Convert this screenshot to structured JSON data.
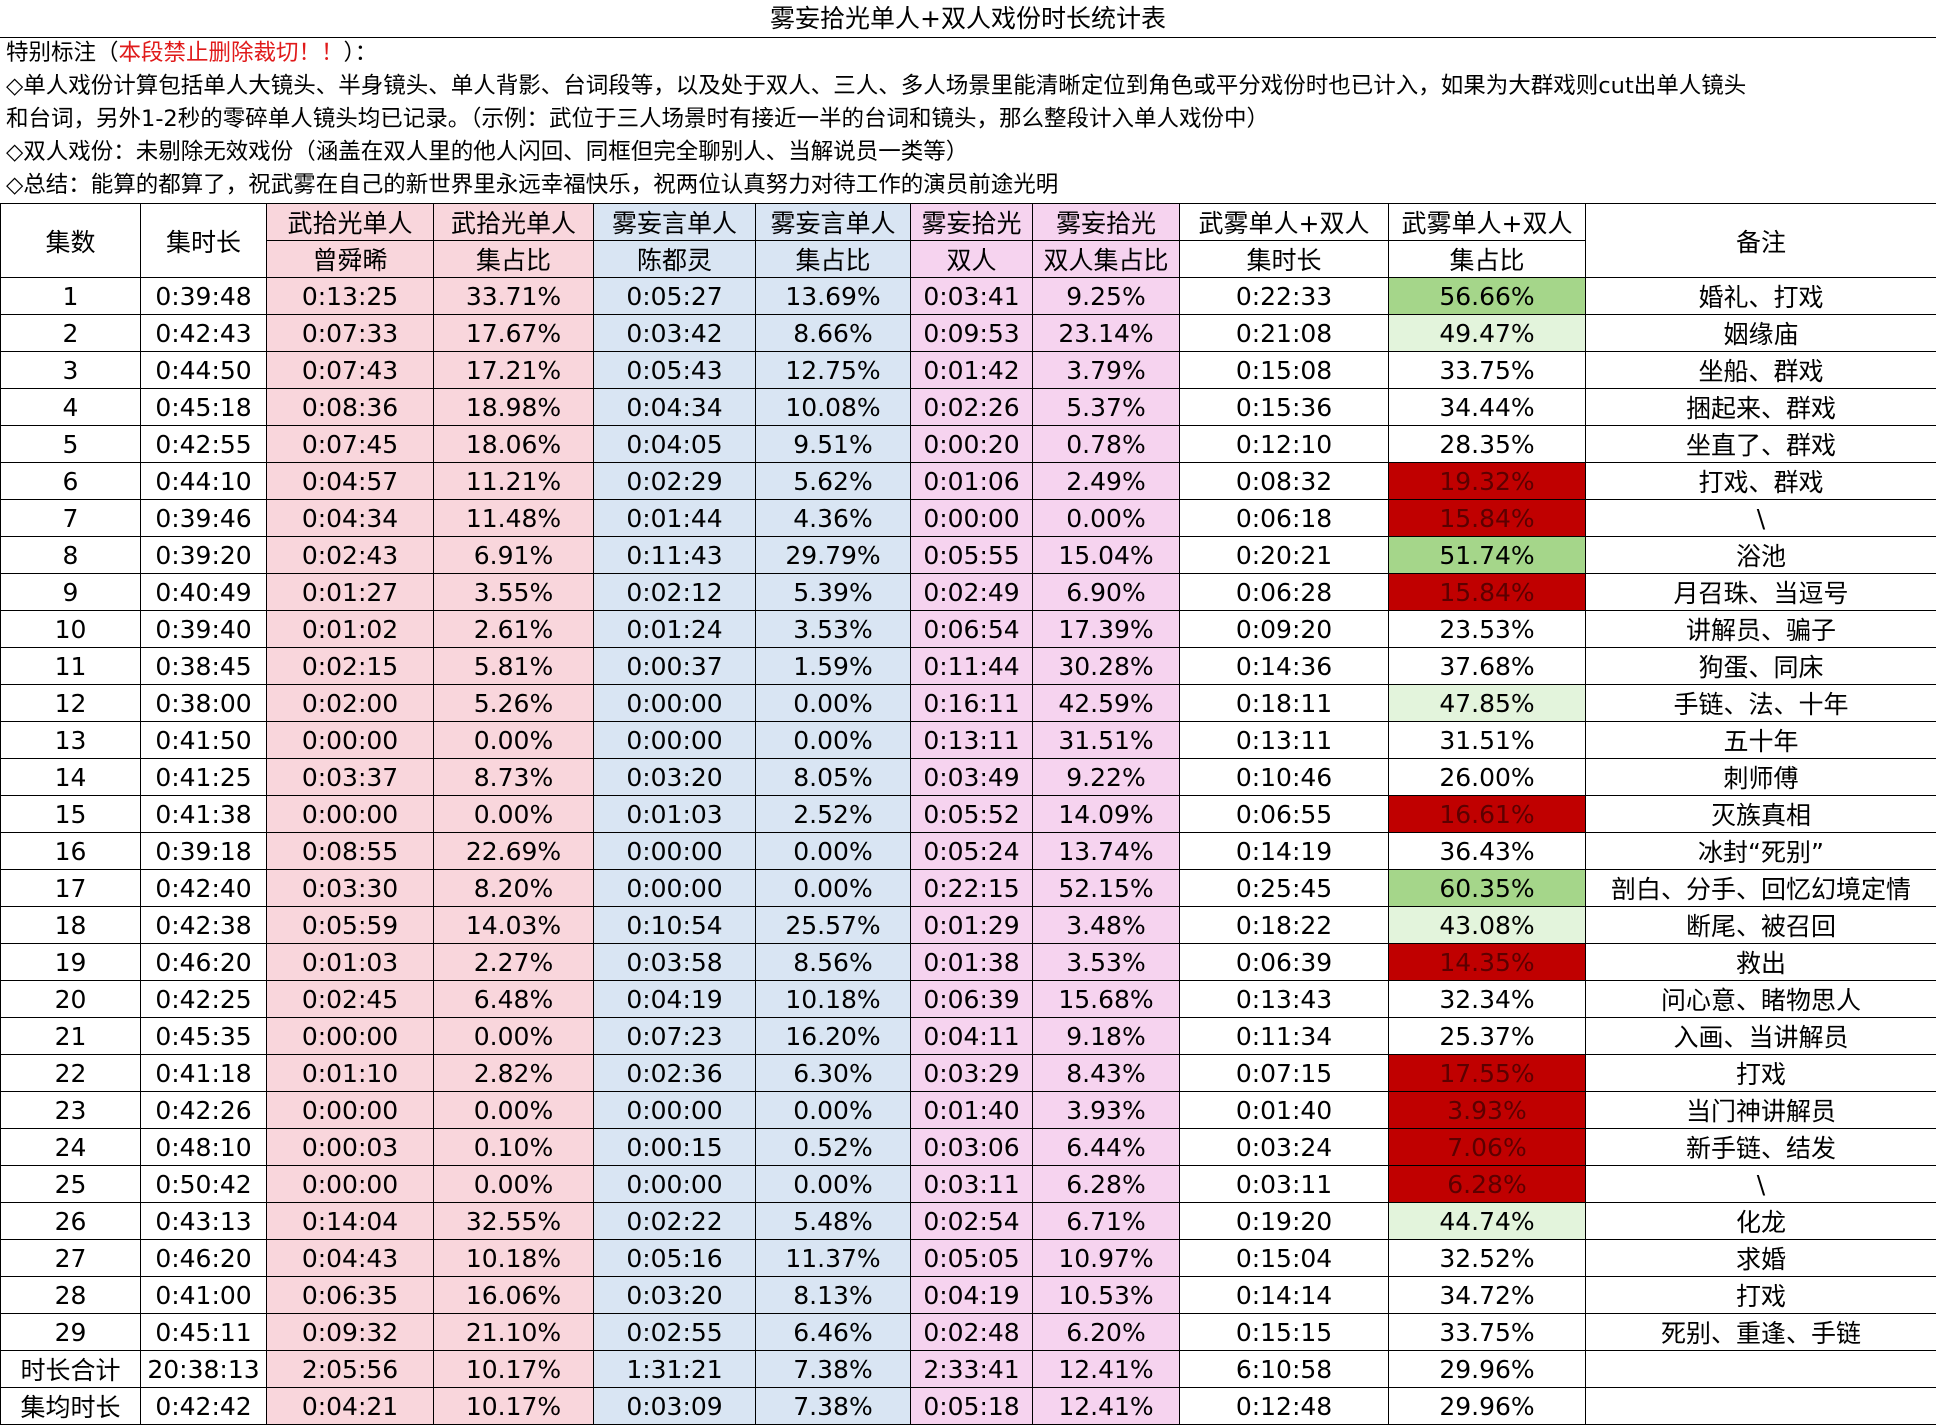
{
  "title": "雾妄拾光单人+双人戏份时长统计表",
  "notes": {
    "special_prefix": "特别标注（",
    "special_red": "本段禁止删除裁切！！",
    "special_suffix": "）：",
    "line1": "◇单人戏份计算包括单人大镜头、半身镜头、单人背影、台词段等，以及处于双人、三人、多人场景里能清晰定位到角色或平分戏份时也已计入，如果为大群戏则cut出单人镜头",
    "line2": "和台词，另外1-2秒的零碎单人镜头均已记录。（示例：武位于三人场景时有接近一半的台词和镜头，那么整段计入单人戏份中）",
    "line3": "◇双人戏份：未剔除无效戏份（涵盖在双人里的他人闪回、同框但完全聊别人、当解说员一类等）",
    "line4": "◇总结：能算的都算了，祝武雾在自己的新世界里永远幸福快乐，祝两位认真努力对待工作的演员前途光明"
  },
  "header": {
    "episode": "集数",
    "duration": "集时长",
    "wu_solo_top": "武拾光单人",
    "wu_solo_actor": "曾舜晞",
    "wu_share_top": "武拾光单人",
    "wu_share_bottom": "集占比",
    "wuyan_solo_top": "雾妄言单人",
    "wuyan_solo_actor": "陈都灵",
    "wuyan_share_top": "雾妄言单人",
    "wuyan_share_bottom": "集占比",
    "duo_top": "雾妄拾光",
    "duo_bottom": "双人",
    "duo_share_top": "雾妄拾光",
    "duo_share_bottom": "双人集占比",
    "total_top": "武雾单人+双人",
    "total_bottom": "集时长",
    "total_share_top": "武雾单人+双人",
    "total_share_bottom": "集占比",
    "remark": "备注"
  },
  "colors": {
    "pink": "#f9d6dc",
    "blue": "#d9e5f3",
    "purple": "#f6d3ef",
    "green_strong": "#a5d68a",
    "green_light": "#e3f4dc",
    "red_strong": "#c00000"
  },
  "rows": [
    {
      "ep": "1",
      "dur": "0:39:48",
      "wu": "0:13:25",
      "wu_pct": "33.71%",
      "wy": "0:05:27",
      "wy_pct": "13.69%",
      "duo": "0:03:41",
      "duo_pct": "9.25%",
      "tot": "0:22:33",
      "tot_pct": "56.66%",
      "hl": "green-strong",
      "note": "婚礼、打戏"
    },
    {
      "ep": "2",
      "dur": "0:42:43",
      "wu": "0:07:33",
      "wu_pct": "17.67%",
      "wy": "0:03:42",
      "wy_pct": "8.66%",
      "duo": "0:09:53",
      "duo_pct": "23.14%",
      "tot": "0:21:08",
      "tot_pct": "49.47%",
      "hl": "green-light",
      "note": "姻缘庙"
    },
    {
      "ep": "3",
      "dur": "0:44:50",
      "wu": "0:07:43",
      "wu_pct": "17.21%",
      "wy": "0:05:43",
      "wy_pct": "12.75%",
      "duo": "0:01:42",
      "duo_pct": "3.79%",
      "tot": "0:15:08",
      "tot_pct": "33.75%",
      "hl": "",
      "note": "坐船、群戏"
    },
    {
      "ep": "4",
      "dur": "0:45:18",
      "wu": "0:08:36",
      "wu_pct": "18.98%",
      "wy": "0:04:34",
      "wy_pct": "10.08%",
      "duo": "0:02:26",
      "duo_pct": "5.37%",
      "tot": "0:15:36",
      "tot_pct": "34.44%",
      "hl": "",
      "note": "捆起来、群戏"
    },
    {
      "ep": "5",
      "dur": "0:42:55",
      "wu": "0:07:45",
      "wu_pct": "18.06%",
      "wy": "0:04:05",
      "wy_pct": "9.51%",
      "duo": "0:00:20",
      "duo_pct": "0.78%",
      "tot": "0:12:10",
      "tot_pct": "28.35%",
      "hl": "",
      "note": "坐直了、群戏"
    },
    {
      "ep": "6",
      "dur": "0:44:10",
      "wu": "0:04:57",
      "wu_pct": "11.21%",
      "wy": "0:02:29",
      "wy_pct": "5.62%",
      "duo": "0:01:06",
      "duo_pct": "2.49%",
      "tot": "0:08:32",
      "tot_pct": "19.32%",
      "hl": "red-strong",
      "note": "打戏、群戏"
    },
    {
      "ep": "7",
      "dur": "0:39:46",
      "wu": "0:04:34",
      "wu_pct": "11.48%",
      "wy": "0:01:44",
      "wy_pct": "4.36%",
      "duo": "0:00:00",
      "duo_pct": "0.00%",
      "tot": "0:06:18",
      "tot_pct": "15.84%",
      "hl": "red-strong",
      "note": "\\"
    },
    {
      "ep": "8",
      "dur": "0:39:20",
      "wu": "0:02:43",
      "wu_pct": "6.91%",
      "wy": "0:11:43",
      "wy_pct": "29.79%",
      "duo": "0:05:55",
      "duo_pct": "15.04%",
      "tot": "0:20:21",
      "tot_pct": "51.74%",
      "hl": "green-strong",
      "note": "浴池"
    },
    {
      "ep": "9",
      "dur": "0:40:49",
      "wu": "0:01:27",
      "wu_pct": "3.55%",
      "wy": "0:02:12",
      "wy_pct": "5.39%",
      "duo": "0:02:49",
      "duo_pct": "6.90%",
      "tot": "0:06:28",
      "tot_pct": "15.84%",
      "hl": "red-strong",
      "note": "月召珠、当逗号"
    },
    {
      "ep": "10",
      "dur": "0:39:40",
      "wu": "0:01:02",
      "wu_pct": "2.61%",
      "wy": "0:01:24",
      "wy_pct": "3.53%",
      "duo": "0:06:54",
      "duo_pct": "17.39%",
      "tot": "0:09:20",
      "tot_pct": "23.53%",
      "hl": "",
      "note": "讲解员、骗子"
    },
    {
      "ep": "11",
      "dur": "0:38:45",
      "wu": "0:02:15",
      "wu_pct": "5.81%",
      "wy": "0:00:37",
      "wy_pct": "1.59%",
      "duo": "0:11:44",
      "duo_pct": "30.28%",
      "tot": "0:14:36",
      "tot_pct": "37.68%",
      "hl": "",
      "note": "狗蛋、同床"
    },
    {
      "ep": "12",
      "dur": "0:38:00",
      "wu": "0:02:00",
      "wu_pct": "5.26%",
      "wy": "0:00:00",
      "wy_pct": "0.00%",
      "duo": "0:16:11",
      "duo_pct": "42.59%",
      "tot": "0:18:11",
      "tot_pct": "47.85%",
      "hl": "green-light",
      "note": "手链、法、十年"
    },
    {
      "ep": "13",
      "dur": "0:41:50",
      "wu": "0:00:00",
      "wu_pct": "0.00%",
      "wy": "0:00:00",
      "wy_pct": "0.00%",
      "duo": "0:13:11",
      "duo_pct": "31.51%",
      "tot": "0:13:11",
      "tot_pct": "31.51%",
      "hl": "",
      "note": "五十年"
    },
    {
      "ep": "14",
      "dur": "0:41:25",
      "wu": "0:03:37",
      "wu_pct": "8.73%",
      "wy": "0:03:20",
      "wy_pct": "8.05%",
      "duo": "0:03:49",
      "duo_pct": "9.22%",
      "tot": "0:10:46",
      "tot_pct": "26.00%",
      "hl": "",
      "note": "刺师傅"
    },
    {
      "ep": "15",
      "dur": "0:41:38",
      "wu": "0:00:00",
      "wu_pct": "0.00%",
      "wy": "0:01:03",
      "wy_pct": "2.52%",
      "duo": "0:05:52",
      "duo_pct": "14.09%",
      "tot": "0:06:55",
      "tot_pct": "16.61%",
      "hl": "red-strong",
      "note": "灭族真相"
    },
    {
      "ep": "16",
      "dur": "0:39:18",
      "wu": "0:08:55",
      "wu_pct": "22.69%",
      "wy": "0:00:00",
      "wy_pct": "0.00%",
      "duo": "0:05:24",
      "duo_pct": "13.74%",
      "tot": "0:14:19",
      "tot_pct": "36.43%",
      "hl": "",
      "note": "冰封“死别”"
    },
    {
      "ep": "17",
      "dur": "0:42:40",
      "wu": "0:03:30",
      "wu_pct": "8.20%",
      "wy": "0:00:00",
      "wy_pct": "0.00%",
      "duo": "0:22:15",
      "duo_pct": "52.15%",
      "tot": "0:25:45",
      "tot_pct": "60.35%",
      "hl": "green-strong",
      "note": "剖白、分手、回忆幻境定情"
    },
    {
      "ep": "18",
      "dur": "0:42:38",
      "wu": "0:05:59",
      "wu_pct": "14.03%",
      "wy": "0:10:54",
      "wy_pct": "25.57%",
      "duo": "0:01:29",
      "duo_pct": "3.48%",
      "tot": "0:18:22",
      "tot_pct": "43.08%",
      "hl": "green-light",
      "note": "断尾、被召回"
    },
    {
      "ep": "19",
      "dur": "0:46:20",
      "wu": "0:01:03",
      "wu_pct": "2.27%",
      "wy": "0:03:58",
      "wy_pct": "8.56%",
      "duo": "0:01:38",
      "duo_pct": "3.53%",
      "tot": "0:06:39",
      "tot_pct": "14.35%",
      "hl": "red-strong",
      "note": "救出"
    },
    {
      "ep": "20",
      "dur": "0:42:25",
      "wu": "0:02:45",
      "wu_pct": "6.48%",
      "wy": "0:04:19",
      "wy_pct": "10.18%",
      "duo": "0:06:39",
      "duo_pct": "15.68%",
      "tot": "0:13:43",
      "tot_pct": "32.34%",
      "hl": "",
      "note": "问心意、睹物思人"
    },
    {
      "ep": "21",
      "dur": "0:45:35",
      "wu": "0:00:00",
      "wu_pct": "0.00%",
      "wy": "0:07:23",
      "wy_pct": "16.20%",
      "duo": "0:04:11",
      "duo_pct": "9.18%",
      "tot": "0:11:34",
      "tot_pct": "25.37%",
      "hl": "",
      "note": "入画、当讲解员"
    },
    {
      "ep": "22",
      "dur": "0:41:18",
      "wu": "0:01:10",
      "wu_pct": "2.82%",
      "wy": "0:02:36",
      "wy_pct": "6.30%",
      "duo": "0:03:29",
      "duo_pct": "8.43%",
      "tot": "0:07:15",
      "tot_pct": "17.55%",
      "hl": "red-strong",
      "note": "打戏"
    },
    {
      "ep": "23",
      "dur": "0:42:26",
      "wu": "0:00:00",
      "wu_pct": "0.00%",
      "wy": "0:00:00",
      "wy_pct": "0.00%",
      "duo": "0:01:40",
      "duo_pct": "3.93%",
      "tot": "0:01:40",
      "tot_pct": "3.93%",
      "hl": "red-strong",
      "note": "当门神讲解员"
    },
    {
      "ep": "24",
      "dur": "0:48:10",
      "wu": "0:00:03",
      "wu_pct": "0.10%",
      "wy": "0:00:15",
      "wy_pct": "0.52%",
      "duo": "0:03:06",
      "duo_pct": "6.44%",
      "tot": "0:03:24",
      "tot_pct": "7.06%",
      "hl": "red-strong",
      "note": "新手链、结发"
    },
    {
      "ep": "25",
      "dur": "0:50:42",
      "wu": "0:00:00",
      "wu_pct": "0.00%",
      "wy": "0:00:00",
      "wy_pct": "0.00%",
      "duo": "0:03:11",
      "duo_pct": "6.28%",
      "tot": "0:03:11",
      "tot_pct": "6.28%",
      "hl": "red-strong",
      "note": "\\"
    },
    {
      "ep": "26",
      "dur": "0:43:13",
      "wu": "0:14:04",
      "wu_pct": "32.55%",
      "wy": "0:02:22",
      "wy_pct": "5.48%",
      "duo": "0:02:54",
      "duo_pct": "6.71%",
      "tot": "0:19:20",
      "tot_pct": "44.74%",
      "hl": "green-light",
      "note": "化龙"
    },
    {
      "ep": "27",
      "dur": "0:46:20",
      "wu": "0:04:43",
      "wu_pct": "10.18%",
      "wy": "0:05:16",
      "wy_pct": "11.37%",
      "duo": "0:05:05",
      "duo_pct": "10.97%",
      "tot": "0:15:04",
      "tot_pct": "32.52%",
      "hl": "",
      "note": "求婚"
    },
    {
      "ep": "28",
      "dur": "0:41:00",
      "wu": "0:06:35",
      "wu_pct": "16.06%",
      "wy": "0:03:20",
      "wy_pct": "8.13%",
      "duo": "0:04:19",
      "duo_pct": "10.53%",
      "tot": "0:14:14",
      "tot_pct": "34.72%",
      "hl": "",
      "note": "打戏"
    },
    {
      "ep": "29",
      "dur": "0:45:11",
      "wu": "0:09:32",
      "wu_pct": "21.10%",
      "wy": "0:02:55",
      "wy_pct": "6.46%",
      "duo": "0:02:48",
      "duo_pct": "6.20%",
      "tot": "0:15:15",
      "tot_pct": "33.75%",
      "hl": "",
      "note": "死别、重逢、手链"
    },
    {
      "ep": "时长合计",
      "dur": "20:38:13",
      "wu": "2:05:56",
      "wu_pct": "10.17%",
      "wy": "1:31:21",
      "wy_pct": "7.38%",
      "duo": "2:33:41",
      "duo_pct": "12.41%",
      "tot": "6:10:58",
      "tot_pct": "29.96%",
      "hl": "",
      "note": ""
    },
    {
      "ep": "集均时长",
      "dur": "0:42:42",
      "wu": "0:04:21",
      "wu_pct": "10.17%",
      "wy": "0:03:09",
      "wy_pct": "7.38%",
      "duo": "0:05:18",
      "duo_pct": "12.41%",
      "tot": "0:12:48",
      "tot_pct": "29.96%",
      "hl": "",
      "note": ""
    }
  ]
}
